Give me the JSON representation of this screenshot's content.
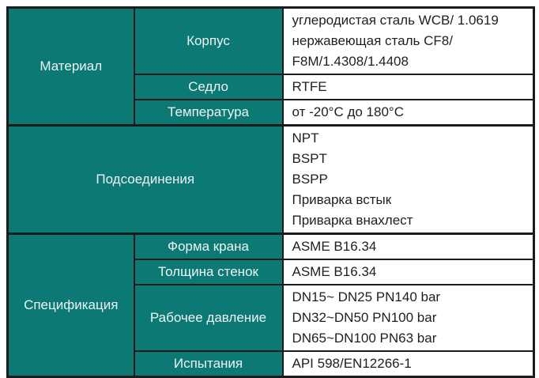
{
  "table": {
    "colors": {
      "header_bg": "#0c7975",
      "header_text": "#eef4f3",
      "value_text": "#1f1f1f",
      "border": "#1b1b1b",
      "value_bg": "#ffffff"
    },
    "sections": [
      {
        "label": "Материал",
        "rows": [
          {
            "param": "Корпус",
            "value": "углеродистая сталь WCB/ 1.0619\nнержавеющая сталь CF8/\nF8M/1.4308/1.4408"
          },
          {
            "param": "Седло",
            "value": "RTFE"
          },
          {
            "param": "Температура",
            "value": "от -20°C до 180°C"
          }
        ]
      },
      {
        "label": "Подсоединения",
        "rows": [
          {
            "param": "",
            "value": "NPT\nBSPT\nBSPP\nПриварка встык\nПриварка внахлест"
          }
        ]
      },
      {
        "label": "Спецификация",
        "rows": [
          {
            "param": "Форма крана",
            "value": "ASME B16.34"
          },
          {
            "param": "Толщина стенок",
            "value": "ASME B16.34"
          },
          {
            "param": "Рабочее давление",
            "value": "DN15~ DN25 PN140 bar\nDN32~DN50 PN100 bar\nDN65~DN100 PN63 bar"
          },
          {
            "param": "Испытания",
            "value": "API 598/EN12266-1"
          }
        ]
      }
    ]
  }
}
